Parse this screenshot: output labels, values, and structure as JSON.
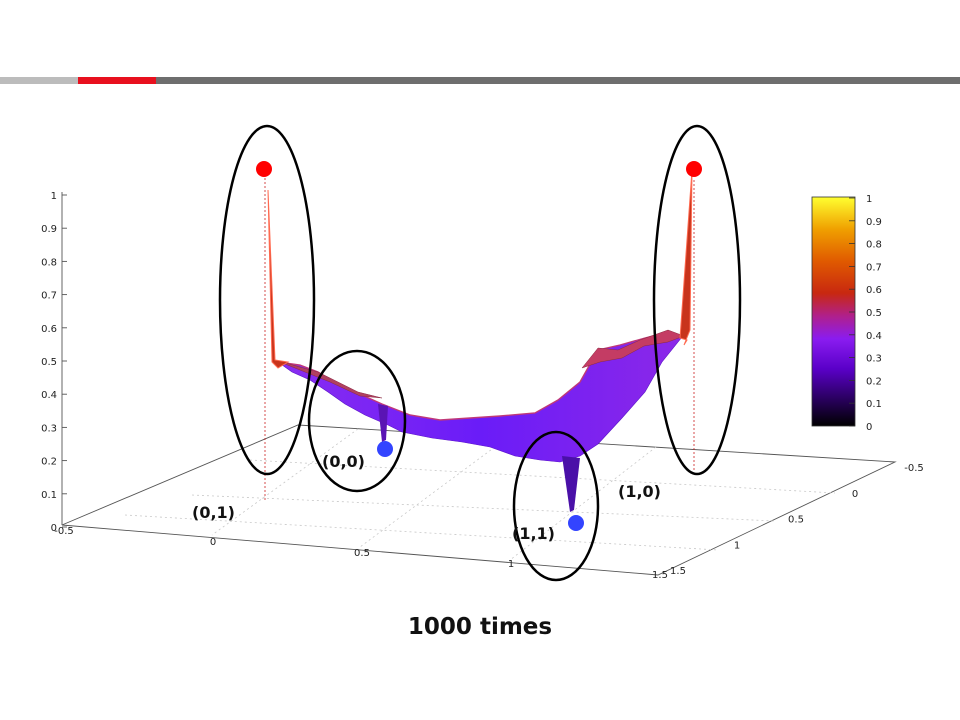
{
  "caption": "1000 times",
  "colors": {
    "rule_light": "#bcbcbc",
    "rule_accent": "#e8101e",
    "rule_dark": "#6e6e6e",
    "marker_high": "#ff0000",
    "marker_low": "#3344ff",
    "surface": "#7a1cf5"
  },
  "chart_data": {
    "type": "surface3d",
    "title": "1000 times",
    "z_ticks": [
      "0",
      "0.1",
      "0.2",
      "0.3",
      "0.4",
      "0.5",
      "0.6",
      "0.7",
      "0.8",
      "0.9",
      "1"
    ],
    "zlim": [
      0,
      1
    ],
    "x_ticks": [
      "-0.5",
      "0",
      "0.5",
      "1",
      "1.5"
    ],
    "xlim": [
      -0.5,
      1.5
    ],
    "y_ticks": [
      "-0.5",
      "0",
      "0.5",
      "1",
      "1.5"
    ],
    "ylim": [
      -0.5,
      1.5
    ],
    "colorbar": {
      "ticks": [
        "0",
        "0.1",
        "0.2",
        "0.3",
        "0.4",
        "0.5",
        "0.6",
        "0.7",
        "0.8",
        "0.9",
        "1"
      ],
      "range": [
        0,
        1
      ],
      "colormap": "black-purple-red-yellow"
    },
    "corner_points": [
      {
        "label": "(0,1)",
        "value": 1,
        "marker": "red"
      },
      {
        "label": "(0,0)",
        "value": 0.25,
        "marker": "blue"
      },
      {
        "label": "(1,1)",
        "value": 0.0,
        "marker": "blue"
      },
      {
        "label": "(1,0)",
        "value": 1,
        "marker": "red"
      }
    ],
    "surface_level_approx": 0.35,
    "grid": true
  }
}
